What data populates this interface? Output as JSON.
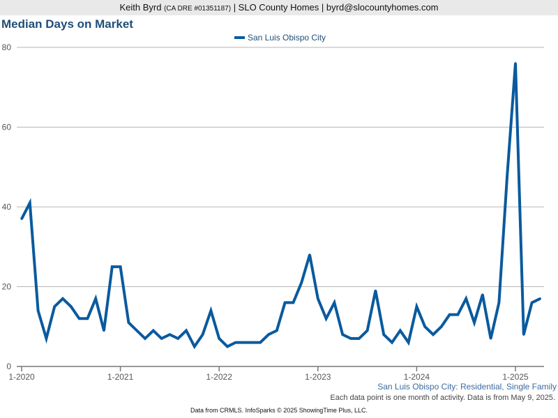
{
  "header": {
    "agent_name": "Keith Byrd",
    "agent_license": "(CA DRE #01351187)",
    "brokerage": "| SLO County Homes |",
    "email": "byrd@slocountyhomes.com"
  },
  "chart_data": {
    "type": "line",
    "title": "Median Days on Market",
    "xlabel": "",
    "ylabel": "",
    "ylim": [
      0,
      80
    ],
    "y_ticks": [
      "0",
      "20",
      "40",
      "60",
      "80"
    ],
    "x_tick_labels": [
      "1-2020",
      "1-2021",
      "1-2022",
      "1-2023",
      "1-2024",
      "1-2025"
    ],
    "x_tick_month_index": [
      0,
      12,
      24,
      36,
      48,
      60
    ],
    "grid": true,
    "legend_position": "top-center",
    "series": [
      {
        "name": "San Luis Obispo City",
        "color": "#0a5a9e",
        "start_month": "1-2020",
        "values": [
          37,
          41,
          14,
          7,
          15,
          17,
          15,
          12,
          12,
          17,
          9,
          25,
          25,
          11,
          9,
          7,
          9,
          7,
          8,
          7,
          9,
          5,
          8,
          14,
          7,
          5,
          6,
          6,
          6,
          6,
          8,
          9,
          16,
          16,
          21,
          28,
          17,
          12,
          16,
          8,
          7,
          7,
          9,
          19,
          8,
          6,
          9,
          6,
          15,
          10,
          8,
          10,
          13,
          13,
          17,
          11,
          18,
          7,
          16,
          48,
          76,
          8,
          16,
          17
        ]
      }
    ],
    "subtitle": "San Luis Obispo City: Residential, Single Family",
    "note": "Each data point is one month of activity. Data is from May 9, 2025."
  },
  "footer": {
    "source": "Data from CRMLS. InfoSparks © 2025 ShowingTime Plus, LLC."
  }
}
